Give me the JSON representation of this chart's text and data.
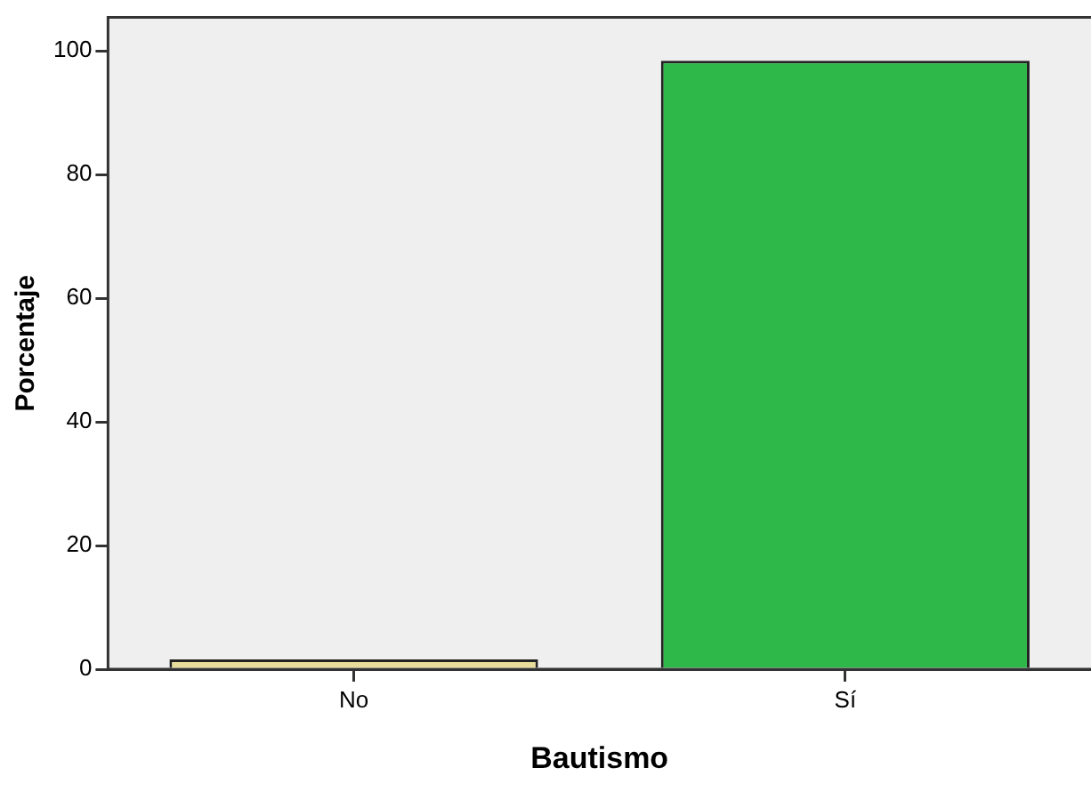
{
  "chart_data": {
    "type": "bar",
    "xlabel": "Bautismo",
    "ylabel": "Porcentaje",
    "categories": [
      "No",
      "Sí"
    ],
    "values": [
      1.6,
      98.4
    ],
    "colors": [
      "#e8dc9a",
      "#2eb84a"
    ],
    "ylim": [
      0,
      105.4
    ],
    "yticks": [
      0,
      20,
      40,
      60,
      80,
      100
    ],
    "legend": false
  }
}
